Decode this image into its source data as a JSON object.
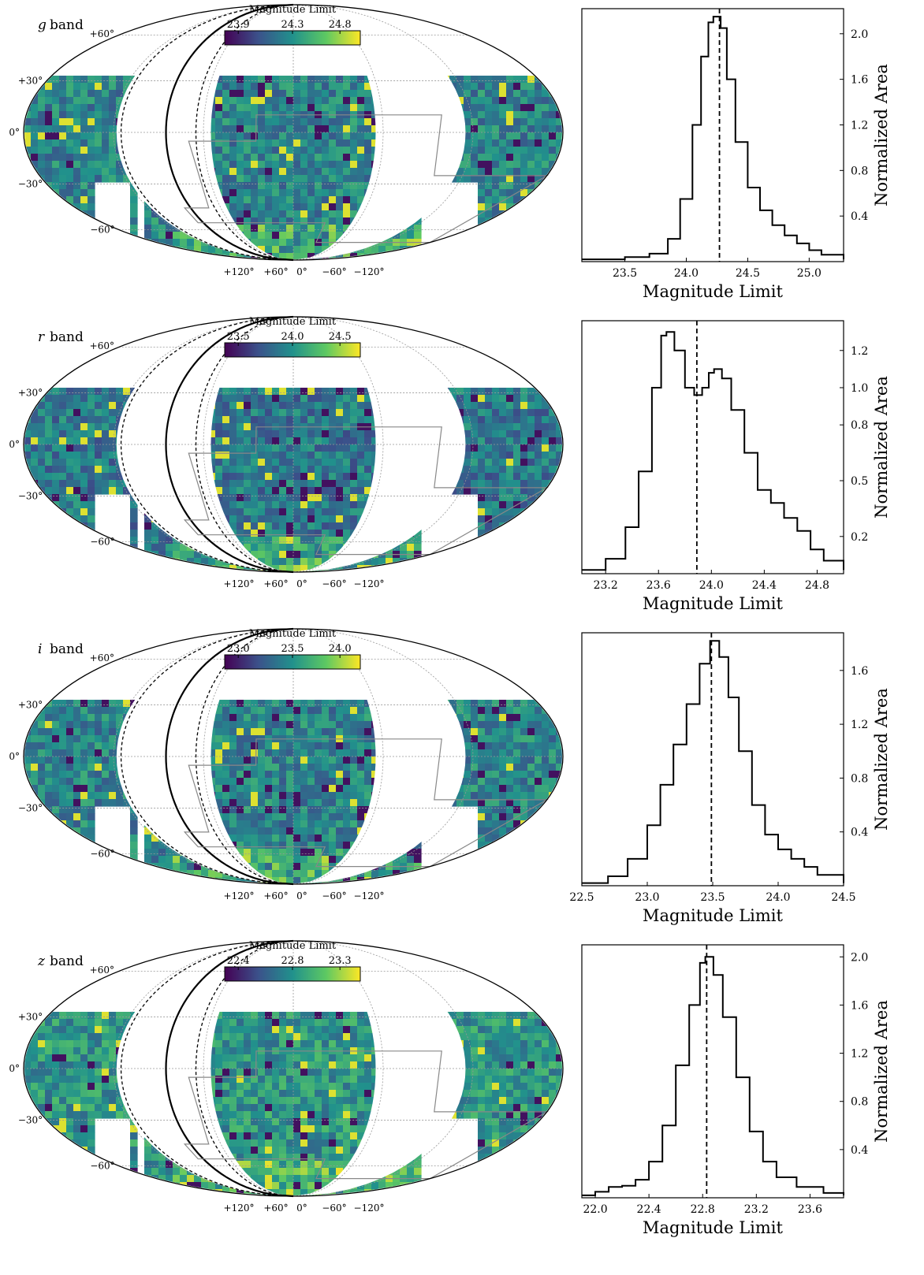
{
  "chart_data": [
    {
      "type": "heatmap",
      "projection": "mollweide",
      "band": "g",
      "band_label": "band",
      "colorbar": {
        "label": "Magnitude Limit",
        "ticks": [
          "23.9",
          "24.3",
          "24.8"
        ],
        "range": [
          23.7,
          25.0
        ],
        "colormap": "viridis"
      },
      "lat_ticks": [
        "+60°",
        "+30°",
        "0°",
        "−30°",
        "−60°"
      ],
      "lon_ticks": [
        "+120°",
        "+60°",
        "0°",
        "−60°",
        "−120°"
      ],
      "grid": true
    },
    {
      "type": "line",
      "style": "step",
      "band": "g",
      "xlabel": "Magnitude Limit",
      "ylabel": "Normalized Area",
      "xlim": [
        23.15,
        25.28
      ],
      "ylim": [
        0.0,
        2.22
      ],
      "xticks": [
        "23.5",
        "24.0",
        "24.5",
        "25.0"
      ],
      "yticks": [
        "0.4",
        "0.8",
        "1.2",
        "1.6",
        "2.0"
      ],
      "median": 24.27,
      "points": [
        [
          23.15,
          0.02
        ],
        [
          23.5,
          0.04
        ],
        [
          23.7,
          0.07
        ],
        [
          23.85,
          0.2
        ],
        [
          23.95,
          0.55
        ],
        [
          24.05,
          1.2
        ],
        [
          24.12,
          1.8
        ],
        [
          24.18,
          2.1
        ],
        [
          24.22,
          2.15
        ],
        [
          24.28,
          2.05
        ],
        [
          24.33,
          1.6
        ],
        [
          24.4,
          1.05
        ],
        [
          24.5,
          0.65
        ],
        [
          24.6,
          0.45
        ],
        [
          24.7,
          0.32
        ],
        [
          24.8,
          0.23
        ],
        [
          24.9,
          0.16
        ],
        [
          25.0,
          0.1
        ],
        [
          25.1,
          0.06
        ],
        [
          25.28,
          0.02
        ]
      ]
    },
    {
      "type": "heatmap",
      "projection": "mollweide",
      "band": "r",
      "band_label": "band",
      "colorbar": {
        "label": "Magnitude Limit",
        "ticks": [
          "23.5",
          "24.0",
          "24.5"
        ],
        "range": [
          23.2,
          24.7
        ],
        "colormap": "viridis"
      },
      "lat_ticks": [
        "+60°",
        "+30°",
        "0°",
        "−30°",
        "−60°"
      ],
      "lon_ticks": [
        "+120°",
        "+60°",
        "0°",
        "−60°",
        "−120°"
      ],
      "grid": true
    },
    {
      "type": "line",
      "style": "step",
      "band": "r",
      "xlabel": "Magnitude Limit",
      "ylabel": "Normalized Area",
      "xlim": [
        23.02,
        25.0
      ],
      "ylim": [
        0.0,
        1.36
      ],
      "xticks": [
        "23.2",
        "23.6",
        "24.0",
        "24.4",
        "24.8"
      ],
      "yticks": [
        "0.2",
        "0.5",
        "0.8",
        "1.0",
        "1.2"
      ],
      "median": 23.89,
      "points": [
        [
          23.02,
          0.02
        ],
        [
          23.2,
          0.08
        ],
        [
          23.35,
          0.25
        ],
        [
          23.45,
          0.55
        ],
        [
          23.55,
          1.0
        ],
        [
          23.62,
          1.28
        ],
        [
          23.66,
          1.3
        ],
        [
          23.72,
          1.2
        ],
        [
          23.8,
          1.0
        ],
        [
          23.87,
          0.96
        ],
        [
          23.93,
          1.0
        ],
        [
          23.98,
          1.08
        ],
        [
          24.02,
          1.1
        ],
        [
          24.08,
          1.05
        ],
        [
          24.15,
          0.88
        ],
        [
          24.25,
          0.65
        ],
        [
          24.35,
          0.45
        ],
        [
          24.45,
          0.38
        ],
        [
          24.55,
          0.3
        ],
        [
          24.65,
          0.23
        ],
        [
          24.75,
          0.13
        ],
        [
          24.85,
          0.07
        ],
        [
          25.0,
          0.02
        ]
      ]
    },
    {
      "type": "heatmap",
      "projection": "mollweide",
      "band": "i",
      "band_label": "band",
      "colorbar": {
        "label": "Magnitude Limit",
        "ticks": [
          "23.0",
          "23.5",
          "24.0"
        ],
        "range": [
          22.6,
          24.3
        ],
        "colormap": "viridis"
      },
      "lat_ticks": [
        "+60°",
        "+30°",
        "0°",
        "−30°",
        "−60°"
      ],
      "lon_ticks": [
        "+120°",
        "+60°",
        "0°",
        "−60°",
        "−120°"
      ],
      "grid": true
    },
    {
      "type": "line",
      "style": "step",
      "band": "i",
      "xlabel": "Magnitude Limit",
      "ylabel": "Normalized Area",
      "xlim": [
        22.5,
        24.5
      ],
      "ylim": [
        0.0,
        1.88
      ],
      "xticks": [
        "22.5",
        "23.0",
        "23.5",
        "24.0",
        "24.5"
      ],
      "yticks": [
        "0.4",
        "0.8",
        "1.2",
        "1.6"
      ],
      "median": 23.49,
      "points": [
        [
          22.5,
          0.02
        ],
        [
          22.7,
          0.07
        ],
        [
          22.85,
          0.2
        ],
        [
          23.0,
          0.45
        ],
        [
          23.1,
          0.75
        ],
        [
          23.2,
          1.05
        ],
        [
          23.3,
          1.35
        ],
        [
          23.4,
          1.65
        ],
        [
          23.48,
          1.82
        ],
        [
          23.55,
          1.7
        ],
        [
          23.62,
          1.4
        ],
        [
          23.7,
          1.0
        ],
        [
          23.8,
          0.6
        ],
        [
          23.9,
          0.38
        ],
        [
          24.0,
          0.27
        ],
        [
          24.1,
          0.2
        ],
        [
          24.2,
          0.14
        ],
        [
          24.3,
          0.08
        ],
        [
          24.5,
          0.02
        ]
      ]
    },
    {
      "type": "heatmap",
      "projection": "mollweide",
      "band": "z",
      "band_label": "band",
      "colorbar": {
        "label": "Magnitude Limit",
        "ticks": [
          "22.4",
          "22.8",
          "23.3"
        ],
        "range": [
          22.1,
          23.5
        ],
        "colormap": "viridis"
      },
      "lat_ticks": [
        "+60°",
        "+30°",
        "0°",
        "−30°",
        "−60°"
      ],
      "lon_ticks": [
        "+120°",
        "+60°",
        "0°",
        "−60°",
        "−120°"
      ],
      "grid": true
    },
    {
      "type": "line",
      "style": "step",
      "band": "z",
      "xlabel": "Magnitude Limit",
      "ylabel": "Normalized Area",
      "xlim": [
        21.9,
        23.85
      ],
      "ylim": [
        0.0,
        2.1
      ],
      "xticks": [
        "22.0",
        "22.4",
        "22.8",
        "23.2",
        "23.6"
      ],
      "yticks": [
        "0.4",
        "0.8",
        "1.2",
        "1.6",
        "2.0"
      ],
      "median": 22.83,
      "points": [
        [
          21.9,
          0.02
        ],
        [
          22.0,
          0.05
        ],
        [
          22.1,
          0.09
        ],
        [
          22.2,
          0.1
        ],
        [
          22.3,
          0.15
        ],
        [
          22.4,
          0.3
        ],
        [
          22.5,
          0.6
        ],
        [
          22.6,
          1.1
        ],
        [
          22.7,
          1.6
        ],
        [
          22.78,
          1.95
        ],
        [
          22.82,
          2.0
        ],
        [
          22.88,
          1.85
        ],
        [
          22.95,
          1.5
        ],
        [
          23.05,
          1.0
        ],
        [
          23.15,
          0.55
        ],
        [
          23.25,
          0.3
        ],
        [
          23.35,
          0.17
        ],
        [
          23.5,
          0.09
        ],
        [
          23.7,
          0.04
        ],
        [
          23.85,
          0.02
        ]
      ]
    }
  ]
}
